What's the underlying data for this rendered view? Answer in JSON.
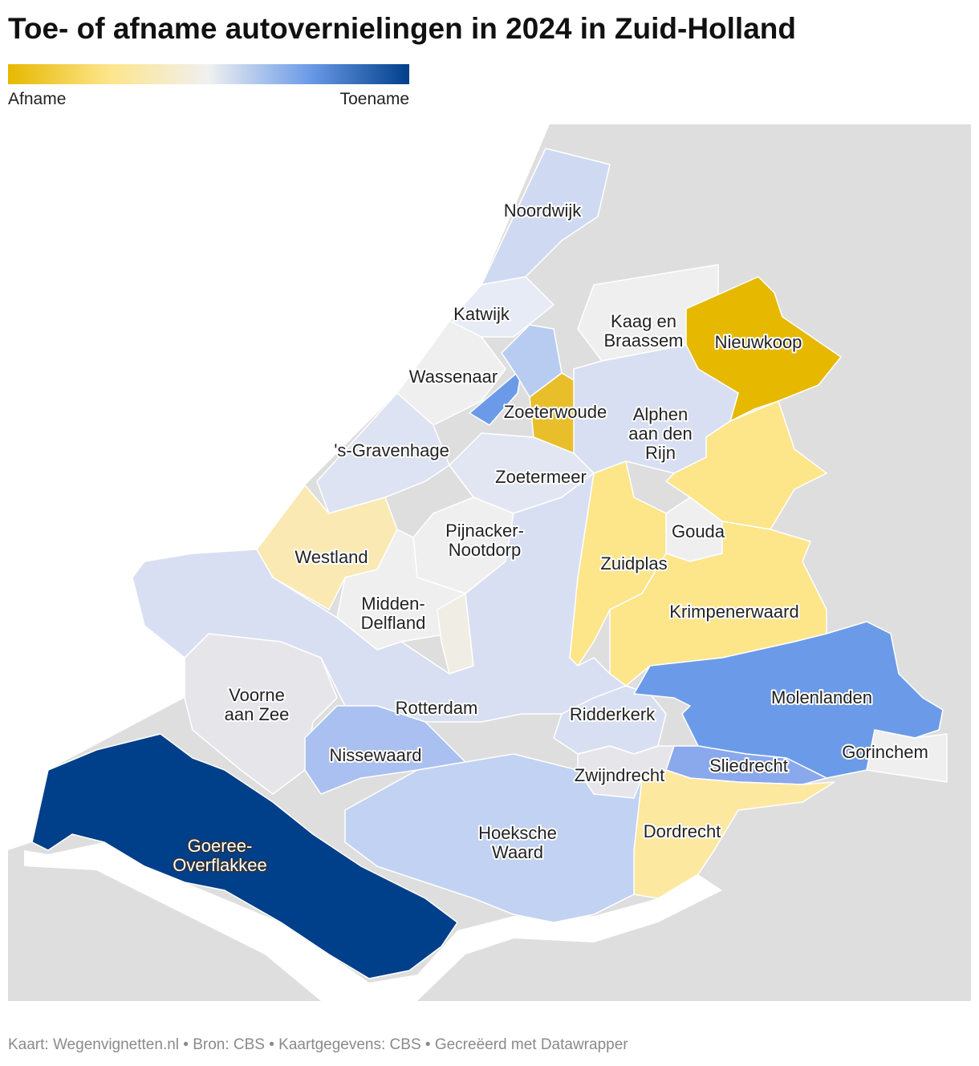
{
  "title": "Toe- of afname autovernielingen in 2024 in Zuid-Holland",
  "legend": {
    "low_label": "Afname",
    "high_label": "Toename",
    "colors": [
      "#e6b800",
      "#fde58a",
      "#f0f0f0",
      "#6b9be8",
      "#003f8a"
    ]
  },
  "regions": [
    {
      "label_lines": [
        "Noordwijk"
      ],
      "color": "#cfdaf2"
    },
    {
      "label_lines": [
        "Katwijk"
      ],
      "color": "#e6ebf5"
    },
    {
      "label_lines": [
        "Kaag en",
        "Braassem"
      ],
      "color": "#efefef"
    },
    {
      "label_lines": [
        "Nieuwkoop"
      ],
      "color": "#e6b800"
    },
    {
      "label_lines": [
        "Wassenaar"
      ],
      "color": "#efefef"
    },
    {
      "label_lines": [
        "Zoeterwoude"
      ],
      "color": "#e8be2a"
    },
    {
      "color": "#6b9be8"
    },
    {
      "color": "#b8ccf2"
    },
    {
      "label_lines": [
        "Alphen",
        "aan den",
        "Rijn"
      ],
      "color": "#d8dff2"
    },
    {
      "label_lines": [
        "'s-Gravenhage"
      ],
      "color": "#dde3f2"
    },
    {
      "label_lines": [
        "Zoetermeer"
      ],
      "color": "#e2e6f2"
    },
    {
      "label_lines": [
        "Westland"
      ],
      "color": "#fbe9b3"
    },
    {
      "label_lines": [
        "Pijnacker-",
        "Nootdorp"
      ],
      "color": "#efefef"
    },
    {
      "color": "#fde58a"
    },
    {
      "label_lines": [
        "Gouda"
      ],
      "color": "#efefef"
    },
    {
      "label_lines": [
        "Zuidplas"
      ],
      "color": "#fde58a"
    },
    {
      "label_lines": [
        "Krimpenerwaard"
      ],
      "color": "#fde58a"
    },
    {
      "label_lines": [
        "Midden-",
        "Delfland"
      ],
      "color": "#efefef"
    },
    {
      "color": "#f0ede4"
    },
    {
      "label_lines": [
        "Voorne",
        "aan Zee"
      ],
      "color": "#e6e6ea"
    },
    {
      "label_lines": [
        "Rotterdam"
      ],
      "color": "#d8dff2"
    },
    {
      "label_lines": [
        "Nissewaard"
      ],
      "color": "#a9c0f0"
    },
    {
      "label_lines": [
        "Ridderkerk"
      ],
      "color": "#d8dff2"
    },
    {
      "label_lines": [
        "Molenlanden"
      ],
      "color": "#6b9be8"
    },
    {
      "label_lines": [
        "Gorinchem"
      ],
      "color": "#efefef"
    },
    {
      "label_lines": [
        "Sliedrecht"
      ],
      "color": "#8aa8ec"
    },
    {
      "label_lines": [
        "Zwijndrecht"
      ],
      "color": "#e6e6ea"
    },
    {
      "label_lines": [
        "Dordrecht"
      ],
      "color": "#fde8a0"
    },
    {
      "label_lines": [
        "Hoeksche",
        "Waard"
      ],
      "color": "#c2d2f2"
    },
    {
      "label_lines": [
        "Goeree-",
        "Overflakkee"
      ],
      "color": "#003f8a"
    }
  ],
  "footer": "Kaart: Wegenvignetten.nl • Bron: CBS • Kaartgegevens: CBS • Gecreëerd met Datawrapper"
}
